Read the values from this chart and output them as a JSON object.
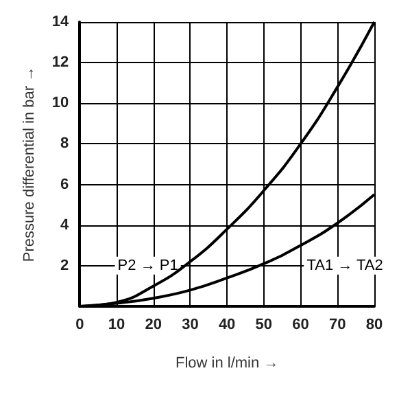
{
  "chart_data": {
    "type": "line",
    "xlabel": "Flow in l/min →",
    "ylabel": "Pressure differential in bar →",
    "x": [
      0,
      10,
      20,
      30,
      40,
      50,
      60,
      70,
      80
    ],
    "series": [
      {
        "color": "#000000",
        "values": [
          0,
          0.2,
          1.0,
          2.2,
          3.8,
          5.7,
          8.0,
          10.8,
          14
        ]
      },
      {
        "color": "#000000",
        "values": [
          0,
          0.15,
          0.4,
          0.8,
          1.4,
          2.1,
          3.0,
          4.1,
          5.5
        ]
      }
    ],
    "xlim": [
      0,
      80
    ],
    "xticks": [
      0,
      10,
      20,
      30,
      40,
      50,
      60,
      70,
      80
    ],
    "ylim": [
      0,
      14
    ],
    "yticks": [
      {
        "value": 0,
        "label": null
      },
      2,
      4,
      6,
      8,
      10,
      12,
      14
    ],
    "grid": true,
    "marker": "none",
    "line_style": "solid",
    "annotations": [
      "P2 → P1",
      "TA1 → TA2"
    ]
  }
}
